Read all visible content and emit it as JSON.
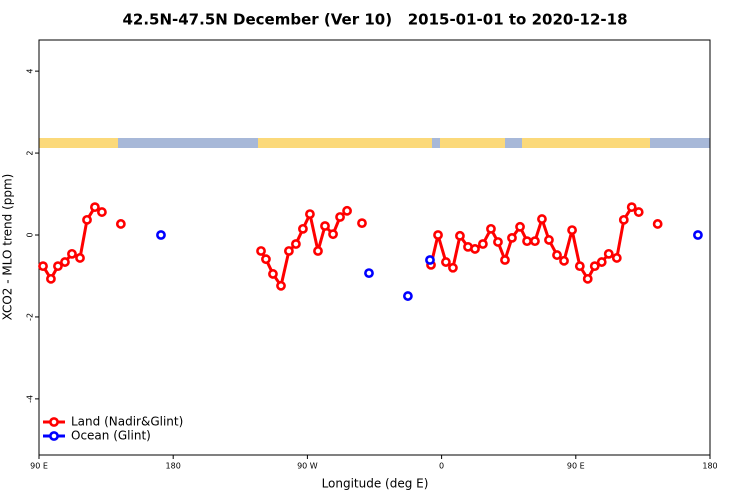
{
  "chart_data": {
    "type": "line",
    "title": "42.5N-47.5N December (Ver 10)   2015-01-01 to 2020-12-18",
    "xlabel": "Longitude (deg E)",
    "ylabel": "XCO2 - MLO trend (ppm)",
    "xlim": [
      90,
      540
    ],
    "xticks": [
      {
        "value": 90,
        "label": "90 E"
      },
      180,
      {
        "value": 270,
        "label": "90 W"
      },
      {
        "value": 360,
        "label": "0"
      },
      {
        "value": 450,
        "label": "90 E"
      },
      {
        "value": 540,
        "label": "180"
      }
    ],
    "ylim": [
      -5.37,
      4.76
    ],
    "yticks": [
      -4,
      -2,
      0,
      2,
      4
    ],
    "legend": "bottom left",
    "series": [
      {
        "name": "Land (Nadir&Glint)",
        "color": "#ff0000",
        "x": [
          92.7,
          98.0,
          102.7,
          107.4,
          112.1,
          117.5,
          122.2,
          127.5,
          132.2,
          null,
          144.9,
          null,
          238.9,
          242.2,
          246.9,
          252.3,
          257.6,
          262.3,
          267.0,
          271.7,
          277.1,
          281.8,
          287.2,
          291.9,
          296.6,
          null,
          306.6,
          null,
          352.9,
          357.6,
          362.9,
          367.6,
          372.3,
          377.7,
          382.4,
          387.7,
          393.1,
          397.8,
          402.5,
          407.2,
          412.6,
          417.3,
          422.6,
          427.3,
          432.0,
          437.4,
          442.1,
          447.5,
          452.7,
          458.0,
          462.7,
          467.4,
          472.1,
          477.5,
          482.2,
          487.5,
          492.2,
          null,
          504.9
        ],
        "values": [
          -0.76,
          -1.07,
          -0.76,
          -0.66,
          -0.46,
          -0.56,
          0.37,
          0.68,
          0.56,
          null,
          0.27,
          null,
          -0.39,
          -0.59,
          -0.95,
          -1.24,
          -0.39,
          -0.22,
          0.15,
          0.51,
          -0.39,
          0.22,
          0.02,
          0.44,
          0.59,
          null,
          0.29,
          null,
          -0.73,
          0.0,
          -0.66,
          -0.8,
          -0.02,
          -0.29,
          -0.34,
          -0.22,
          0.15,
          -0.17,
          -0.61,
          -0.07,
          0.2,
          -0.15,
          -0.15,
          0.39,
          -0.12,
          -0.49,
          -0.63,
          0.12,
          -0.76,
          -1.07,
          -0.76,
          -0.66,
          -0.46,
          -0.56,
          0.37,
          0.68,
          0.56,
          null,
          0.27
        ]
      },
      {
        "name": "Ocean (Glint)",
        "color": "#0000ff",
        "x": [
          171.8,
          311.3,
          337.4,
          352.2,
          531.9
        ],
        "values": [
          0.0,
          -0.93,
          -1.49,
          -0.61,
          0.0
        ]
      }
    ]
  }
}
